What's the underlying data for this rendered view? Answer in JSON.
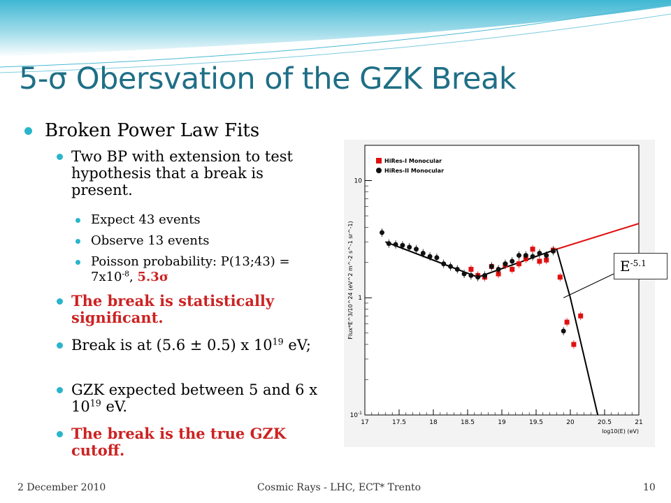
{
  "slide": {
    "title": "5-σ Obersvation of the GZK Break",
    "bullet_main": "Broken Power Law Fits",
    "sub1": "Two BP with extension to test hypothesis that a break is present.",
    "sub_sub": [
      "Expect 43 events",
      "Observe 13 events"
    ],
    "poisson": {
      "prefix": "Poisson probability:  P(13;43) = 7x10",
      "exp": "-8",
      "mid": ", ",
      "sigma": "5.3σ"
    },
    "significant": "The break is statistically significant.",
    "break_at": {
      "prefix": "Break is at (5.6 ± 0.5) x 10",
      "exp": "19",
      "suffix": " eV;"
    },
    "gzk_expected": {
      "prefix": "GZK expected between 5 and 6 x 10",
      "exp": "19",
      "suffix": " eV."
    },
    "true_gzk": "The break is the true GZK cutoff.",
    "annotation": {
      "base": "E",
      "exp": "-5.1"
    }
  },
  "footer": {
    "date": "2 December 2010",
    "center": "Cosmic Rays - LHC, ECT* Trento",
    "page": "10"
  },
  "colors": {
    "title": "#1f6f86",
    "bullet": "#29b5cc",
    "emphasis": "#cc2222",
    "hires1": "#e01010",
    "hires2": "#111111"
  },
  "chart_data": {
    "type": "scatter",
    "ylabel": "Flux*E^3/10^24 (eV^2 m^-2 s^-1 sr^-1)",
    "xlabel": "log10(E) (eV)",
    "y_scale": "log",
    "xlim": [
      17,
      21
    ],
    "ylim": [
      0.1,
      20
    ],
    "x_ticks": [
      "17",
      "17.5",
      "18",
      "18.5",
      "19",
      "19.5",
      "20",
      "20.5",
      "21"
    ],
    "y_ticks": [
      "10",
      "1",
      "10-1"
    ],
    "legend_position": "top-left",
    "series": [
      {
        "name": "HiRes-I Monocular",
        "marker": "square",
        "points": [
          [
            18.55,
            1.75
          ],
          [
            18.65,
            1.55
          ],
          [
            18.75,
            1.5
          ],
          [
            18.85,
            1.85
          ],
          [
            18.95,
            1.6
          ],
          [
            19.05,
            1.9
          ],
          [
            19.15,
            1.75
          ],
          [
            19.25,
            1.95
          ],
          [
            19.35,
            2.15
          ],
          [
            19.45,
            2.6
          ],
          [
            19.55,
            2.05
          ],
          [
            19.65,
            2.1
          ],
          [
            19.75,
            2.55
          ],
          [
            19.85,
            1.5
          ],
          [
            19.95,
            0.62
          ],
          [
            20.05,
            0.4
          ],
          [
            20.15,
            0.7
          ]
        ]
      },
      {
        "name": "HiRes-II Monocular",
        "marker": "circle",
        "points": [
          [
            17.25,
            3.6
          ],
          [
            17.35,
            2.9
          ],
          [
            17.45,
            2.85
          ],
          [
            17.55,
            2.8
          ],
          [
            17.65,
            2.7
          ],
          [
            17.75,
            2.6
          ],
          [
            17.85,
            2.4
          ],
          [
            17.95,
            2.25
          ],
          [
            18.05,
            2.2
          ],
          [
            18.15,
            1.95
          ],
          [
            18.25,
            1.85
          ],
          [
            18.35,
            1.75
          ],
          [
            18.45,
            1.6
          ],
          [
            18.55,
            1.55
          ],
          [
            18.65,
            1.5
          ],
          [
            18.75,
            1.55
          ],
          [
            18.85,
            1.85
          ],
          [
            18.95,
            1.75
          ],
          [
            19.05,
            1.95
          ],
          [
            19.15,
            2.05
          ],
          [
            19.25,
            2.3
          ],
          [
            19.35,
            2.3
          ],
          [
            19.45,
            2.25
          ],
          [
            19.55,
            2.4
          ],
          [
            19.65,
            2.3
          ],
          [
            19.75,
            2.5
          ],
          [
            19.9,
            0.52
          ]
        ]
      }
    ],
    "fits": [
      {
        "name": "HiRes-I fit extension",
        "color": "red",
        "points": [
          [
            19.8,
            2.6
          ],
          [
            21.0,
            4.3
          ]
        ]
      },
      {
        "name": "broken power law",
        "color": "black",
        "points": [
          [
            17.3,
            3.0
          ],
          [
            18.65,
            1.5
          ],
          [
            19.8,
            2.6
          ],
          [
            20.0,
            1.0
          ],
          [
            20.4,
            0.1
          ]
        ]
      }
    ]
  }
}
